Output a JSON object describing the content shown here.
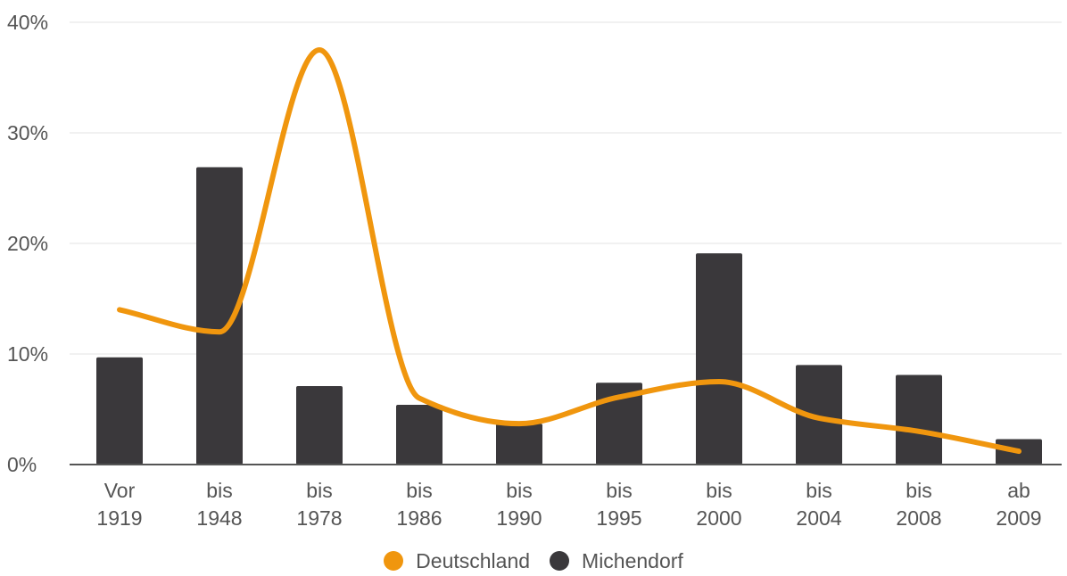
{
  "chart_data": {
    "type": "bar",
    "categories": [
      [
        "Vor",
        "1919"
      ],
      [
        "bis",
        "1948"
      ],
      [
        "bis",
        "1978"
      ],
      [
        "bis",
        "1986"
      ],
      [
        "bis",
        "1990"
      ],
      [
        "bis",
        "1995"
      ],
      [
        "bis",
        "2000"
      ],
      [
        "bis",
        "2004"
      ],
      [
        "bis",
        "2008"
      ],
      [
        "ab",
        "2009"
      ]
    ],
    "series": [
      {
        "name": "Michendorf",
        "kind": "bar",
        "color": "#3a383b",
        "values": [
          9.7,
          26.9,
          7.1,
          5.4,
          3.7,
          7.4,
          19.1,
          9.0,
          8.1,
          2.3
        ]
      },
      {
        "name": "Deutschland",
        "kind": "line",
        "smooth": true,
        "color": "#f0960e",
        "values": [
          14.0,
          12.0,
          37.5,
          6.0,
          3.7,
          6.1,
          7.5,
          4.2,
          3.0,
          1.2
        ]
      }
    ],
    "ylim": [
      0,
      40
    ],
    "yticks": [
      0,
      10,
      20,
      30,
      40
    ],
    "ytick_labels": [
      "0%",
      "10%",
      "20%",
      "30%",
      "40%"
    ],
    "grid": true,
    "legend_position": "bottom-center",
    "title": "",
    "xlabel": "",
    "ylabel": ""
  },
  "legend": {
    "items": [
      {
        "label": "Deutschland",
        "color": "#f0960e"
      },
      {
        "label": "Michendorf",
        "color": "#3a383b"
      }
    ]
  }
}
